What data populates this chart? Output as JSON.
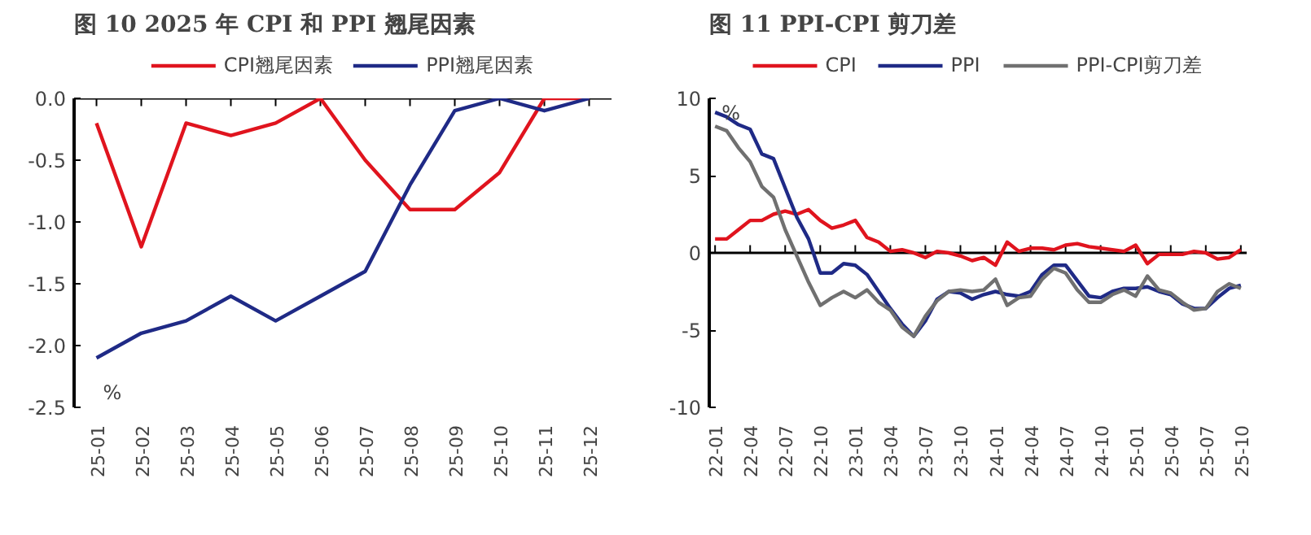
{
  "chart_data": [
    {
      "type": "line",
      "title": "图 10  2025 年 CPI 和 PPI 翘尾因素",
      "ylabel": "%",
      "categories": [
        "25-01",
        "25-02",
        "25-03",
        "25-04",
        "25-05",
        "25-06",
        "25-07",
        "25-08",
        "25-09",
        "25-10",
        "25-11",
        "25-12"
      ],
      "series": [
        {
          "name": "CPI翘尾因素",
          "color": "#e0141e",
          "values": [
            -0.2,
            -1.2,
            -0.2,
            -0.3,
            -0.2,
            0,
            -0.5,
            -0.9,
            -0.9,
            -0.6,
            0,
            0
          ]
        },
        {
          "name": "PPI翘尾因素",
          "color": "#1f2a86",
          "values": [
            -2.1,
            -1.9,
            -1.8,
            -1.6,
            -1.8,
            -1.6,
            -1.4,
            -0.7,
            -0.1,
            0,
            -0.1,
            0
          ]
        }
      ],
      "ylim": [
        -2.5,
        0
      ],
      "yticks": [
        {
          "value": -2.5,
          "label": "-2.5"
        },
        {
          "value": -2,
          "label": "-2.0"
        },
        {
          "value": -1.5,
          "label": "-1.5"
        },
        {
          "value": -1,
          "label": "-1.0"
        },
        {
          "value": -0.5,
          "label": "-0.5"
        },
        {
          "value": 0,
          "label": "0.0"
        }
      ],
      "ref_lines": [
        {
          "axis": "y",
          "value": 0,
          "color": "#000000"
        }
      ],
      "grid": false,
      "legend": "top",
      "marker": "none",
      "line_style": "solid"
    },
    {
      "type": "line",
      "title": "图 11  PPI-CPI 剪刀差",
      "ylabel": "%",
      "categories": [
        "22-01",
        null,
        null,
        "22-04",
        null,
        null,
        "22-07",
        null,
        null,
        "22-10",
        null,
        null,
        "23-01",
        null,
        null,
        "23-04",
        null,
        null,
        "23-07",
        null,
        null,
        "23-10",
        null,
        null,
        "24-01",
        null,
        null,
        "24-04",
        null,
        null,
        "24-07",
        null,
        null,
        "24-10",
        null,
        null,
        "25-01",
        null,
        null,
        "25-04",
        null,
        null,
        "25-07",
        null,
        null,
        "25-10"
      ],
      "series": [
        {
          "name": "CPI",
          "color": "#e0141e",
          "values": [
            0.9,
            0.9,
            1.5,
            2.1,
            2.1,
            2.5,
            2.7,
            2.5,
            2.8,
            2.1,
            1.6,
            1.8,
            2.1,
            1.0,
            0.7,
            0.1,
            0.2,
            0.0,
            -0.3,
            0.1,
            0.0,
            -0.2,
            -0.5,
            -0.3,
            -0.8,
            0.7,
            0.1,
            0.3,
            0.3,
            0.2,
            0.5,
            0.6,
            0.4,
            0.3,
            0.2,
            0.1,
            0.5,
            -0.7,
            -0.1,
            -0.1,
            -0.1,
            0.1,
            0.0,
            -0.4,
            -0.3,
            0.2
          ]
        },
        {
          "name": "PPI",
          "color": "#1f2a86",
          "values": [
            9.1,
            8.8,
            8.3,
            8.0,
            6.4,
            6.1,
            4.2,
            2.3,
            0.9,
            -1.3,
            -1.3,
            -0.7,
            -0.8,
            -1.4,
            -2.5,
            -3.6,
            -4.6,
            -5.4,
            -4.4,
            -3.0,
            -2.5,
            -2.6,
            -3.0,
            -2.7,
            -2.5,
            -2.7,
            -2.8,
            -2.5,
            -1.4,
            -0.8,
            -0.8,
            -1.8,
            -2.8,
            -2.9,
            -2.5,
            -2.3,
            -2.3,
            -2.2,
            -2.5,
            -2.7,
            -3.3,
            -3.6,
            -3.6,
            -2.9,
            -2.3,
            -2.1
          ]
        },
        {
          "name": "PPI-CPI剪刀差",
          "color": "#707070",
          "values": [
            8.2,
            7.9,
            6.8,
            5.9,
            4.3,
            3.6,
            1.5,
            -0.2,
            -1.9,
            -3.4,
            -2.9,
            -2.5,
            -2.9,
            -2.4,
            -3.2,
            -3.7,
            -4.8,
            -5.4,
            -4.1,
            -3.1,
            -2.5,
            -2.4,
            -2.5,
            -2.4,
            -1.7,
            -3.4,
            -2.9,
            -2.8,
            -1.7,
            -1.0,
            -1.3,
            -2.4,
            -3.2,
            -3.2,
            -2.7,
            -2.4,
            -2.8,
            -1.5,
            -2.4,
            -2.6,
            -3.2,
            -3.7,
            -3.6,
            -2.5,
            -2.0,
            -2.3
          ]
        }
      ],
      "ylim": [
        -10,
        10
      ],
      "yticks": [
        -10,
        -5,
        0,
        5,
        10
      ],
      "ref_lines": [
        {
          "axis": "y",
          "value": 0,
          "color": "#000000"
        }
      ],
      "grid": false,
      "legend": "top",
      "marker": "none",
      "line_style": "solid"
    }
  ]
}
